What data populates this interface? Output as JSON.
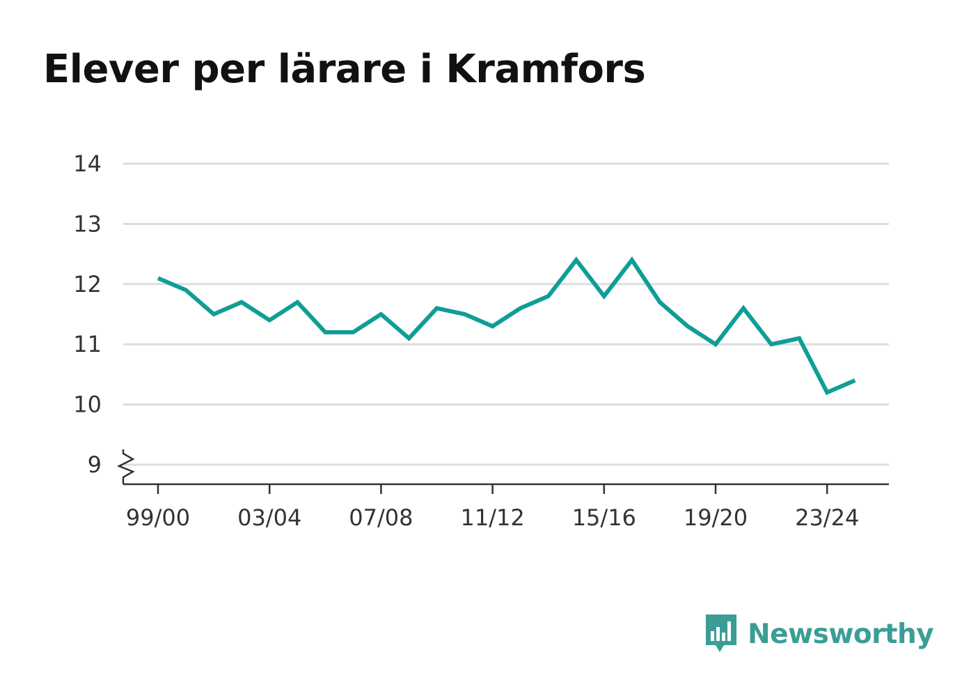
{
  "title": "Elever per lärare i Kramfors",
  "brand": {
    "name": "Newsworthy",
    "logo_icon": "bar-chart-speech-bubble-icon",
    "color": "#3a9e96"
  },
  "chart_data": {
    "type": "line",
    "title": "Elever per lärare i Kramfors",
    "xlabel": "",
    "ylabel": "",
    "x": [
      "99/00",
      "00/01",
      "01/02",
      "02/03",
      "03/04",
      "04/05",
      "05/06",
      "06/07",
      "07/08",
      "08/09",
      "09/10",
      "10/11",
      "11/12",
      "12/13",
      "13/14",
      "14/15",
      "15/16",
      "16/17",
      "17/18",
      "18/19",
      "19/20",
      "20/21",
      "21/22",
      "22/23",
      "23/24",
      "24/25"
    ],
    "x_tick_labels": [
      "99/00",
      "03/04",
      "07/08",
      "11/12",
      "15/16",
      "19/20",
      "23/24"
    ],
    "y_tick_labels": [
      "9",
      "10",
      "11",
      "12",
      "13",
      "14"
    ],
    "ylim": [
      9,
      14
    ],
    "y_axis_break": true,
    "grid": true,
    "series": [
      {
        "values": [
          12.1,
          11.9,
          11.5,
          11.7,
          11.4,
          11.7,
          11.2,
          11.2,
          11.5,
          11.1,
          11.6,
          11.5,
          11.3,
          11.6,
          11.8,
          12.4,
          11.8,
          12.4,
          11.7,
          11.3,
          11.0,
          11.6,
          11.0,
          11.1,
          10.2,
          10.4
        ],
        "color": "#0f9e96"
      }
    ],
    "colors": {
      "line": "#0f9e96",
      "grid": "#dddddd",
      "axis": "#333333"
    }
  }
}
